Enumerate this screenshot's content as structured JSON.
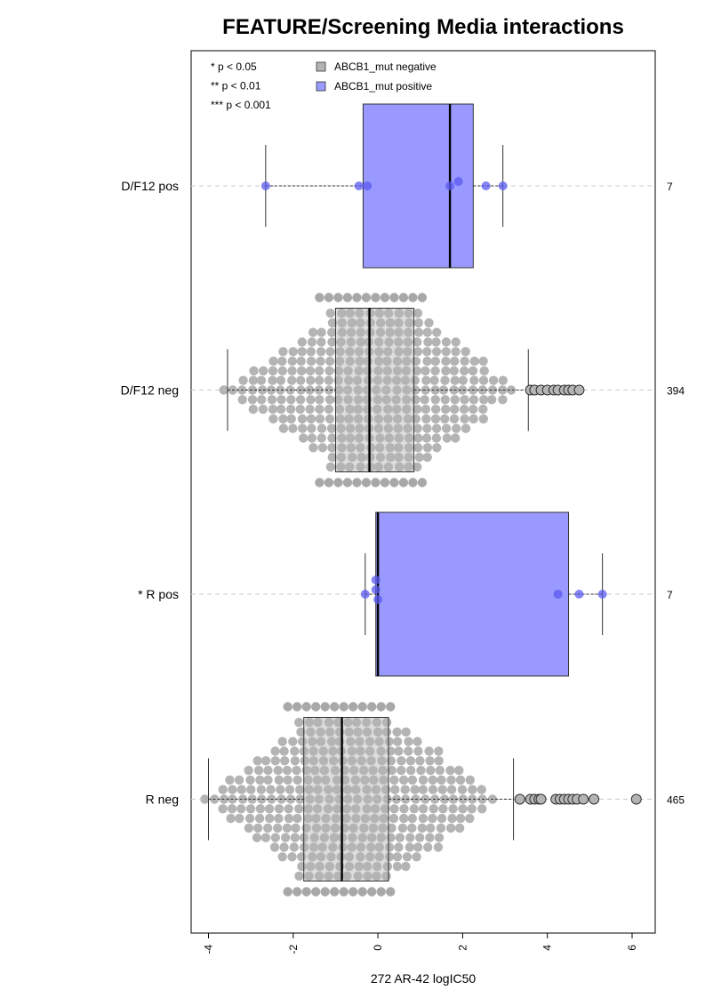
{
  "chart_data": {
    "type": "boxplot",
    "title": "FEATURE/Screening Media interactions",
    "xlabel": "272 AR-42 logIC50",
    "ylabel": "",
    "xlim": [
      -4.4,
      6.5
    ],
    "xticks": [
      -4,
      -2,
      0,
      2,
      4,
      6
    ],
    "grid": "dashed horizontal at each group",
    "significance_legend": [
      "* p < 0.05",
      "** p < 0.01",
      "*** p < 0.001"
    ],
    "legend": [
      {
        "label": "ABCB1_mut negative",
        "color": "#b4b4b4"
      },
      {
        "label": "ABCB1_mut positive",
        "color": "#9999ff"
      }
    ],
    "groups": [
      {
        "label": "D/F12 pos",
        "n": "7",
        "color": "#9999ff",
        "point_color": "#5a5af0",
        "box": {
          "min": -2.65,
          "q1": -0.35,
          "median": 1.7,
          "q3": 2.25,
          "max": 2.95
        },
        "points": [
          -2.65,
          -0.45,
          -0.25,
          1.7,
          1.9,
          2.55,
          2.95
        ]
      },
      {
        "label": "D/F12 neg",
        "n": "394",
        "color": "#b4b4b4",
        "point_color": "#b4b4b4",
        "box": {
          "min": -3.55,
          "q1": -1.0,
          "median": -0.2,
          "q3": 0.85,
          "max": 3.55
        },
        "outliers": [
          3.6,
          3.7,
          3.85,
          4.0,
          4.15,
          4.25,
          4.4,
          4.5,
          4.6,
          4.75
        ]
      },
      {
        "label": "* R pos",
        "n": "7",
        "color": "#9999ff",
        "point_color": "#5a5af0",
        "box": {
          "min": -0.3,
          "q1": -0.05,
          "median": 0.0,
          "q3": 4.5,
          "max": 5.3
        },
        "points": [
          -0.3,
          -0.05,
          -0.05,
          0.0,
          4.25,
          4.75,
          5.3
        ]
      },
      {
        "label": "R neg",
        "n": "465",
        "color": "#b4b4b4",
        "point_color": "#b4b4b4",
        "box": {
          "min": -4.0,
          "q1": -1.75,
          "median": -0.85,
          "q3": 0.25,
          "max": 3.2
        },
        "outliers": [
          3.35,
          3.6,
          3.7,
          3.8,
          3.85,
          4.2,
          4.3,
          4.4,
          4.5,
          4.6,
          4.7,
          4.85,
          5.1,
          6.1
        ]
      }
    ]
  }
}
